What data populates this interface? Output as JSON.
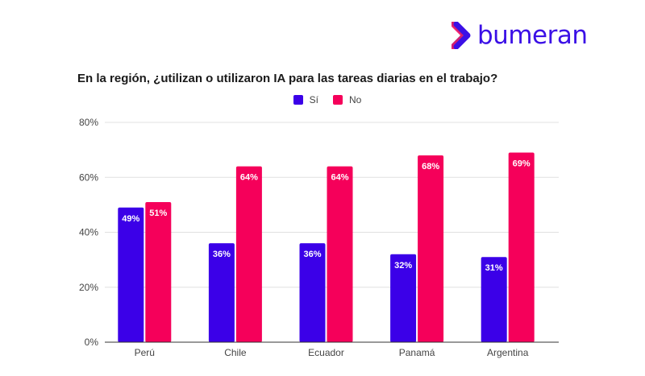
{
  "brand": {
    "name": "bumeran",
    "logo_icon": "chevron-right-logo-icon",
    "color": "#3b10e6"
  },
  "chart_data": {
    "type": "bar",
    "title": "En la región, ¿utilizan o utilizaron IA para las tareas diarias en el trabajo?",
    "xlabel": "",
    "ylabel": "",
    "categories": [
      "Perú",
      "Chile",
      "Ecuador",
      "Panamá",
      "Argentina"
    ],
    "series": [
      {
        "name": "Sí",
        "color": "#3b00e8",
        "values": [
          49,
          36,
          36,
          32,
          31
        ],
        "labels": [
          "49%",
          "36%",
          "36%",
          "32%",
          "31%"
        ]
      },
      {
        "name": "No",
        "color": "#f5005a",
        "values": [
          51,
          64,
          64,
          68,
          69
        ],
        "labels": [
          "51%",
          "64%",
          "64%",
          "68%",
          "69%"
        ]
      }
    ],
    "ylim": [
      0,
      80
    ],
    "yticks": [
      0,
      20,
      40,
      60,
      80
    ],
    "ytick_labels": [
      "0%",
      "20%",
      "40%",
      "60%",
      "80%"
    ],
    "grid": true,
    "legend_position": "top-center"
  }
}
